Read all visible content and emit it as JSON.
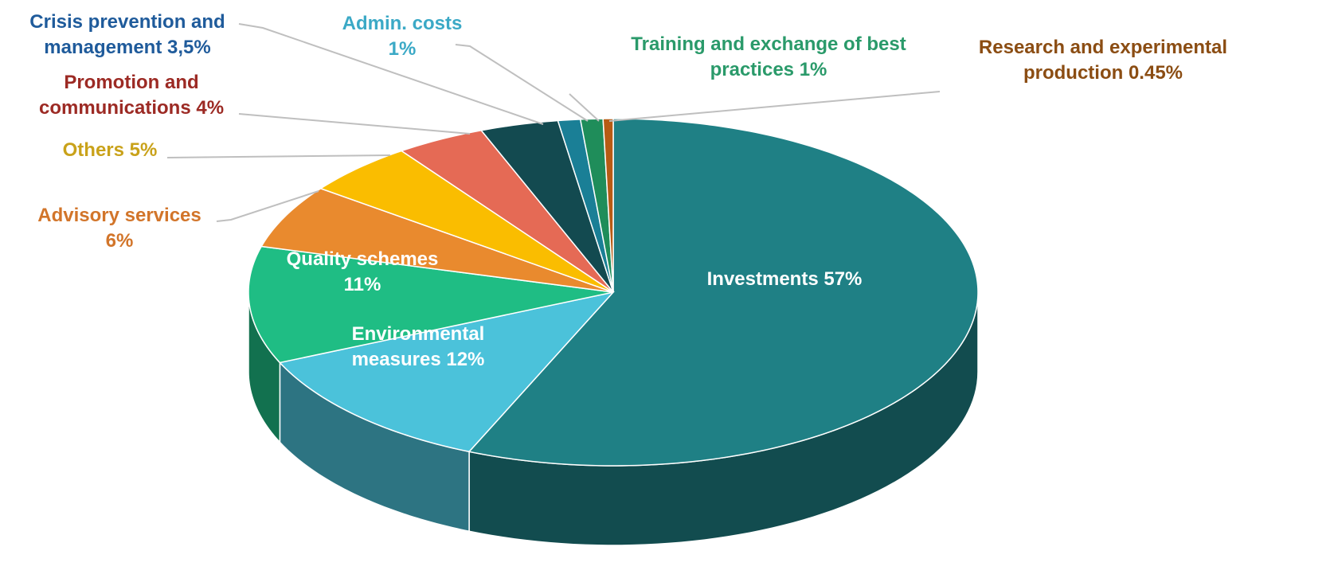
{
  "chart_data": {
    "type": "pie",
    "categories": [
      "Investments",
      "Environmental measures",
      "Quality schemes",
      "Advisory services",
      "Others",
      "Promotion and communications",
      "Crisis prevention and management",
      "Admin. costs",
      "Training and exchange of best practices",
      "Research and experimental production"
    ],
    "values": [
      57,
      12,
      11,
      6,
      5,
      4,
      3.5,
      1,
      1,
      0.45
    ],
    "value_labels": [
      "57%",
      "12%",
      "11%",
      "6%",
      "5%",
      "4%",
      "3,5%",
      "1%",
      "1%",
      "0.45%"
    ],
    "colors": [
      "#1f8085",
      "#4bc2da",
      "#1fbd84",
      "#e98a2e",
      "#fabd00",
      "#e56a55",
      "#134a50",
      "#1a7f96",
      "#1f8d5a",
      "#b65b14"
    ]
  }
}
